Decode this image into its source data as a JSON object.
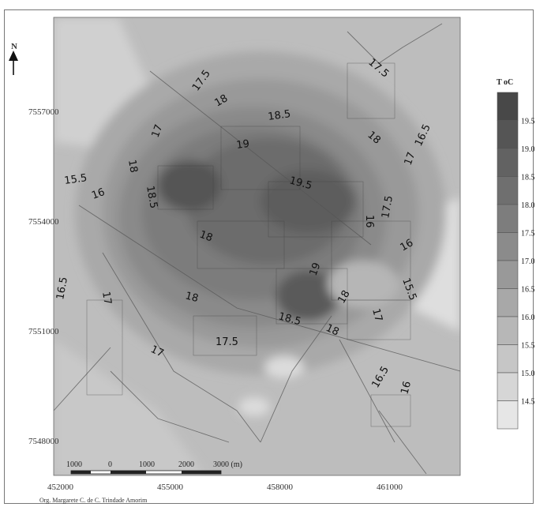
{
  "map": {
    "north_label": "N",
    "x_ticks": [
      "452000",
      "455000",
      "458000",
      "461000"
    ],
    "y_ticks": [
      "7557000",
      "7554000",
      "7551000",
      "7548000"
    ],
    "isotherm_labels": [
      "17.5",
      "18",
      "17",
      "15.5",
      "16",
      "18.5",
      "19",
      "19.5",
      "17.5",
      "18",
      "16.5",
      "17",
      "18.5",
      "18",
      "16",
      "17.5",
      "16.5",
      "17",
      "18",
      "19",
      "16",
      "18",
      "18.5",
      "17.5",
      "18",
      "15.5",
      "18",
      "17",
      "16.5",
      "16",
      "17"
    ],
    "scale_bar": {
      "labels": [
        "1000",
        "0",
        "1000",
        "2000",
        "3000 (m)"
      ]
    },
    "credit": "Org. Margarete C. de C. Trindade Amorim",
    "colors": {
      "warm_core": "#3c3c3c",
      "cool_edge": "#e2e2e2"
    }
  },
  "legend": {
    "title": "T oC",
    "labels": [
      "19.5",
      "19.0",
      "18.5",
      "18.0",
      "17.5",
      "17.0",
      "16.5",
      "16.0",
      "15.5",
      "15.0",
      "14.5"
    ],
    "fills": [
      "#484848",
      "#555555",
      "#626262",
      "#6f6f6f",
      "#7d7d7d",
      "#8b8b8b",
      "#999999",
      "#a8a8a8",
      "#b7b7b7",
      "#c6c6c6",
      "#d6d6d6",
      "#e6e6e6"
    ]
  }
}
